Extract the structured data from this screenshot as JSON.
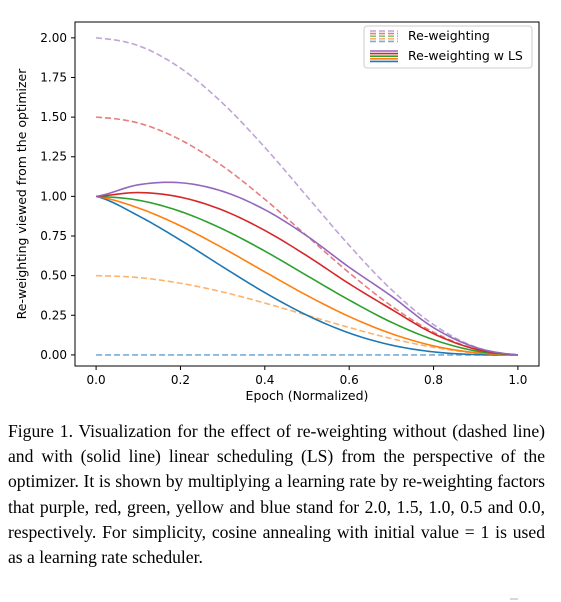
{
  "chart_data": {
    "type": "line",
    "xlabel": "Epoch (Normalized)",
    "ylabel": "Re-weighting viewed from the optimizer",
    "xlim": [
      -0.05,
      1.05
    ],
    "ylim": [
      -0.07,
      2.1
    ],
    "x_ticks": [
      "0.0",
      "0.2",
      "0.4",
      "0.6",
      "0.8",
      "1.0"
    ],
    "y_ticks": [
      "0.00",
      "0.25",
      "0.50",
      "0.75",
      "1.00",
      "1.25",
      "1.50",
      "1.75",
      "2.00"
    ],
    "grid": false,
    "legend_placement": "top-right",
    "legend": [
      {
        "label": "Re-weighting",
        "style": "dashed"
      },
      {
        "label": "Re-weighting w LS",
        "style": "solid"
      }
    ],
    "x": [
      0.0,
      0.1,
      0.2,
      0.3,
      0.4,
      0.5,
      0.6,
      0.7,
      0.8,
      0.9,
      1.0
    ],
    "series": [
      {
        "color": "#9467bd",
        "style": "dashed",
        "values": [
          2.0,
          1.951,
          1.809,
          1.588,
          1.309,
          1.0,
          0.691,
          0.412,
          0.191,
          0.049,
          0.0
        ]
      },
      {
        "color": "#d62728",
        "style": "dashed",
        "values": [
          1.5,
          1.463,
          1.357,
          1.191,
          0.982,
          0.75,
          0.518,
          0.309,
          0.143,
          0.037,
          0.0
        ]
      },
      {
        "color": "#ff7f0e",
        "style": "dashed",
        "values": [
          0.5,
          0.488,
          0.452,
          0.397,
          0.327,
          0.25,
          0.173,
          0.103,
          0.048,
          0.012,
          0.0
        ]
      },
      {
        "color": "#1f77b4",
        "style": "dashed",
        "values": [
          0,
          0,
          0,
          0,
          0,
          0,
          0,
          0,
          0,
          0,
          0
        ]
      },
      {
        "color": "#1f77b4",
        "style": "solid",
        "values": [
          1.0,
          0.878,
          0.724,
          0.556,
          0.393,
          0.25,
          0.138,
          0.062,
          0.019,
          0.002,
          0.0
        ]
      },
      {
        "color": "#ff7f0e",
        "style": "solid",
        "values": [
          1.0,
          0.927,
          0.814,
          0.675,
          0.524,
          0.375,
          0.242,
          0.134,
          0.057,
          0.014,
          0.0
        ]
      },
      {
        "color": "#2ca02c",
        "style": "solid",
        "values": [
          1.0,
          0.976,
          0.905,
          0.794,
          0.655,
          0.5,
          0.346,
          0.206,
          0.096,
          0.025,
          0.0
        ]
      },
      {
        "color": "#d62728",
        "style": "solid",
        "values": [
          1.0,
          1.024,
          0.995,
          0.913,
          0.785,
          0.625,
          0.449,
          0.288,
          0.134,
          0.036,
          0.0
        ]
      },
      {
        "color": "#9467bd",
        "style": "solid",
        "values": [
          1.0,
          1.073,
          1.086,
          1.032,
          0.916,
          0.75,
          0.553,
          0.371,
          0.172,
          0.047,
          0.0
        ]
      }
    ],
    "legend_swatch_colors": [
      "#9467bd",
      "#d62728",
      "#2ca02c",
      "#ff7f0e",
      "#1f77b4"
    ]
  },
  "caption": "Figure 1. Visualization for the effect of re-weighting without (dashed line) and with (solid line) linear scheduling (LS) from the perspective of the optimizer. It is shown by multiplying a learning rate by re-weighting factors that purple, red, green, yellow and blue stand for 2.0, 1.5, 1.0, 0.5 and 0.0, respectively. For simplicity, cosine annealing with initial value = 1 is used as a learning rate scheduler."
}
